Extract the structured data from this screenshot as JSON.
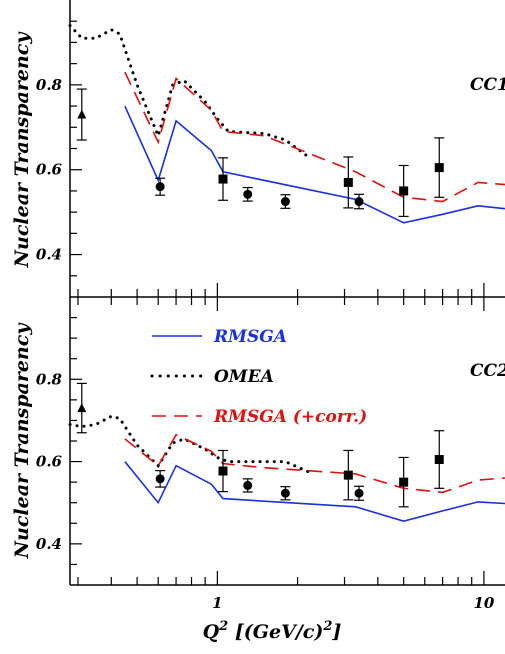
{
  "chart_data": [
    {
      "type": "line",
      "panel": "top",
      "panel_label": "CC1",
      "ylabel": "Nuclear Transparency",
      "xscale": "log",
      "xlim": [
        0.28,
        12
      ],
      "ylim": [
        0.3,
        1.0
      ],
      "yticks": [
        "0.4",
        "0.6",
        "0.8"
      ],
      "series": [
        {
          "name": "RMSGA",
          "style": "solid",
          "color": "#1a2fe0",
          "x": [
            0.45,
            0.6,
            0.7,
            0.95,
            1.05,
            3.3,
            5.0,
            7.0,
            9.5,
            12
          ],
          "y": [
            0.75,
            0.575,
            0.715,
            0.645,
            0.595,
            0.53,
            0.475,
            0.495,
            0.515,
            0.508
          ]
        },
        {
          "name": "OMEA",
          "style": "dotted",
          "color": "#000000",
          "x": [
            0.28,
            0.31,
            0.35,
            0.4,
            0.43,
            0.5,
            0.6,
            0.68,
            0.75,
            0.9,
            1.0,
            1.1,
            1.5,
            1.8,
            2.2
          ],
          "y": [
            0.94,
            0.91,
            0.91,
            0.93,
            0.92,
            0.8,
            0.68,
            0.8,
            0.81,
            0.76,
            0.72,
            0.69,
            0.685,
            0.67,
            0.63
          ]
        },
        {
          "name": "RMSGA (+corr.)",
          "style": "dashed",
          "color": "#e01010",
          "x": [
            0.45,
            0.6,
            0.7,
            0.95,
            1.05,
            1.5,
            3.3,
            5.0,
            7.0,
            9.5,
            12
          ],
          "y": [
            0.83,
            0.665,
            0.815,
            0.74,
            0.69,
            0.68,
            0.595,
            0.535,
            0.525,
            0.57,
            0.565
          ]
        }
      ],
      "data_points": [
        {
          "marker": "triangle",
          "x": [
            0.31
          ],
          "y": [
            0.73
          ],
          "err": [
            0.06
          ]
        },
        {
          "marker": "circle",
          "x": [
            0.61,
            1.3,
            1.8,
            3.4
          ],
          "y": [
            0.56,
            0.542,
            0.525,
            0.525
          ],
          "err": [
            0.02,
            0.016,
            0.016,
            0.017
          ]
        },
        {
          "marker": "square",
          "x": [
            1.05,
            3.1,
            5.0,
            6.8
          ],
          "y": [
            0.578,
            0.57,
            0.55,
            0.605
          ],
          "err": [
            0.05,
            0.06,
            0.06,
            0.07
          ]
        }
      ]
    },
    {
      "type": "line",
      "panel": "bottom",
      "panel_label": "CC2",
      "ylabel": "Nuclear Transparency",
      "xlabel": "Q",
      "xlabel_sup": "2",
      "xlabel_unit": " [(GeV/c)",
      "xlabel_unit_sup": "2",
      "xlabel_close": "]",
      "xscale": "log",
      "xlim": [
        0.28,
        12
      ],
      "ylim": [
        0.3,
        1.0
      ],
      "yticks": [
        "0.4",
        "0.6",
        "0.8"
      ],
      "xticks": [
        {
          "value": 1,
          "label": "1"
        },
        {
          "value": 10,
          "label": "10"
        }
      ],
      "legend": [
        "RMSGA",
        "OMEA",
        "RMSGA (+corr.)"
      ],
      "series": [
        {
          "name": "RMSGA",
          "style": "solid",
          "color": "#1a2fe0",
          "x": [
            0.45,
            0.6,
            0.7,
            0.95,
            1.05,
            3.3,
            5.0,
            7.0,
            9.5,
            12
          ],
          "y": [
            0.6,
            0.5,
            0.59,
            0.545,
            0.51,
            0.49,
            0.455,
            0.48,
            0.502,
            0.498
          ]
        },
        {
          "name": "OMEA",
          "style": "dotted",
          "color": "#000000",
          "x": [
            0.28,
            0.31,
            0.35,
            0.4,
            0.43,
            0.5,
            0.6,
            0.68,
            0.75,
            0.9,
            1.0,
            1.1,
            1.5,
            1.8,
            2.2
          ],
          "y": [
            0.69,
            0.685,
            0.69,
            0.71,
            0.705,
            0.64,
            0.59,
            0.645,
            0.655,
            0.63,
            0.61,
            0.6,
            0.6,
            0.6,
            0.575
          ]
        },
        {
          "name": "RMSGA (+corr.)",
          "style": "dashed",
          "color": "#e01010",
          "x": [
            0.45,
            0.6,
            0.7,
            0.95,
            1.05,
            1.5,
            3.3,
            5.0,
            7.0,
            9.5,
            12
          ],
          "y": [
            0.655,
            0.59,
            0.665,
            0.625,
            0.595,
            0.585,
            0.57,
            0.535,
            0.525,
            0.555,
            0.56
          ]
        }
      ],
      "data_points": [
        {
          "marker": "triangle",
          "x": [
            0.31
          ],
          "y": [
            0.73
          ],
          "err": [
            0.06
          ]
        },
        {
          "marker": "circle",
          "x": [
            0.61,
            1.3,
            1.8,
            3.4
          ],
          "y": [
            0.558,
            0.542,
            0.523,
            0.523
          ],
          "err": [
            0.02,
            0.016,
            0.016,
            0.017
          ]
        },
        {
          "marker": "square",
          "x": [
            1.05,
            3.1,
            5.0,
            6.8
          ],
          "y": [
            0.577,
            0.567,
            0.55,
            0.605
          ],
          "err": [
            0.05,
            0.06,
            0.06,
            0.07
          ]
        }
      ]
    }
  ]
}
